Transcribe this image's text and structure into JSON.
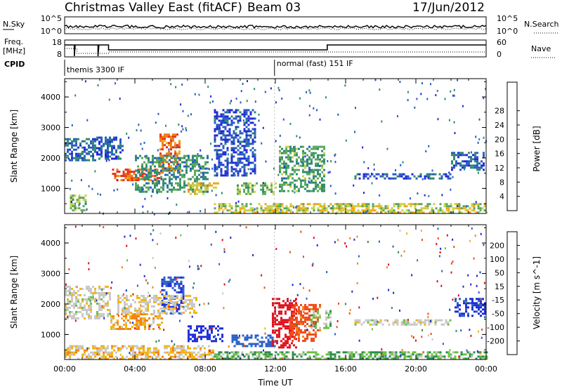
{
  "header": {
    "title": "Christmas Valley East (fitACF)",
    "beam": "Beam 03",
    "date": "17/Jun/2012"
  },
  "strips": {
    "nsky_label": "N.Sky",
    "nsky_ticks": [
      "10^5",
      "10^0"
    ],
    "nsearch_label": "N.Search",
    "nsearch_ticks": [
      "10^5",
      "10^0"
    ],
    "freq_label_line1": "Freq.",
    "freq_label_line2": "[MHz]",
    "freq_ticks": [
      "18",
      "8"
    ],
    "nave_label": "Nave",
    "nave_ticks": [
      "60",
      "0"
    ],
    "cpid_label": "CPID",
    "cpid_modes": [
      {
        "text": "themis 3300 IF",
        "start_hour": 0
      },
      {
        "text": "normal (fast) 151 IF",
        "start_hour": 11.95
      }
    ]
  },
  "chart_data": [
    {
      "type": "heatmap",
      "title": "",
      "xlabel": "",
      "ylabel": "Slant Range [km]",
      "xlim": [
        0,
        24
      ],
      "ylim": [
        180,
        4600
      ],
      "yticks": [
        "1000",
        "2000",
        "3000",
        "4000"
      ],
      "colorbar": {
        "label": "Power [dB]",
        "ticks": [
          "4",
          "8",
          "12",
          "16",
          "20",
          "24",
          "28"
        ],
        "colors": [
          "#1f2bd6",
          "#2a5bc4",
          "#2e8a6e",
          "#5aa85e",
          "#c8d24a",
          "#f0a818",
          "#f07a18",
          "#e83018",
          "#d80a0a"
        ]
      },
      "echo_regions": [
        {
          "x0": 0.0,
          "x1": 1.8,
          "r0": 1900,
          "r1": 2650,
          "val": 6
        },
        {
          "x0": 0.3,
          "x1": 1.2,
          "r0": 250,
          "r1": 800,
          "val": 14
        },
        {
          "x0": 1.8,
          "x1": 3.3,
          "r0": 2000,
          "r1": 2700,
          "val": 5
        },
        {
          "x0": 2.7,
          "x1": 5.4,
          "r0": 1250,
          "r1": 1650,
          "val": 25
        },
        {
          "x0": 5.4,
          "x1": 6.6,
          "r0": 1550,
          "r1": 2800,
          "val": 24
        },
        {
          "x0": 4.0,
          "x1": 8.2,
          "r0": 900,
          "r1": 2100,
          "val": 10
        },
        {
          "x0": 7.0,
          "x1": 8.8,
          "r0": 800,
          "r1": 1200,
          "val": 18
        },
        {
          "x0": 8.5,
          "x1": 10.8,
          "r0": 1400,
          "r1": 3600,
          "val": 4
        },
        {
          "x0": 9.8,
          "x1": 12.0,
          "r0": 800,
          "r1": 1200,
          "val": 13
        },
        {
          "x0": 12.2,
          "x1": 14.8,
          "r0": 900,
          "r1": 2400,
          "val": 11
        },
        {
          "x0": 16.5,
          "x1": 22.0,
          "r0": 1350,
          "r1": 1500,
          "val": 5
        },
        {
          "x0": 22.0,
          "x1": 23.9,
          "r0": 1600,
          "r1": 2200,
          "val": 6
        },
        {
          "x0": 8.5,
          "x1": 24.0,
          "r0": 180,
          "r1": 520,
          "val": 16
        }
      ]
    },
    {
      "type": "heatmap",
      "title": "",
      "xlabel": "Time UT",
      "ylabel": "Slant Range [km]",
      "xlim": [
        0,
        24
      ],
      "ylim": [
        180,
        4600
      ],
      "xticks": [
        "00:00",
        "04:00",
        "08:00",
        "12:00",
        "16:00",
        "20:00",
        "00:00"
      ],
      "yticks": [
        "1000",
        "2000",
        "3000",
        "4000"
      ],
      "colorbar": {
        "label": "Velocity [m s^-1]",
        "ticks": [
          "200",
          "100",
          "50",
          "15",
          "-15",
          "-50",
          "-100",
          "-200"
        ],
        "colors": [
          "#1a2cd8",
          "#2a60c8",
          "#2e8c4e",
          "#6ac044",
          "#c8c8c8",
          "#f0b418",
          "#f08418",
          "#f04a18",
          "#e0101c"
        ]
      },
      "echo_regions": [
        {
          "x0": 0.0,
          "x1": 2.6,
          "r0": 1500,
          "r1": 2600,
          "val": 0
        },
        {
          "x0": 2.6,
          "x1": 5.5,
          "r0": 1200,
          "r1": 1700,
          "val": -30
        },
        {
          "x0": 5.5,
          "x1": 6.8,
          "r0": 1700,
          "r1": 2900,
          "val": 150
        },
        {
          "x0": 3.0,
          "x1": 7.5,
          "r0": 1700,
          "r1": 2300,
          "val": -10
        },
        {
          "x0": 7.0,
          "x1": 9.0,
          "r0": 800,
          "r1": 1300,
          "val": 180
        },
        {
          "x0": 9.5,
          "x1": 12.0,
          "r0": 600,
          "r1": 1000,
          "val": 120
        },
        {
          "x0": 11.8,
          "x1": 13.2,
          "r0": 600,
          "r1": 2200,
          "val": -180
        },
        {
          "x0": 12.8,
          "x1": 14.5,
          "r0": 800,
          "r1": 2000,
          "val": -90
        },
        {
          "x0": 14.0,
          "x1": 15.2,
          "r0": 1200,
          "r1": 1800,
          "val": 20
        },
        {
          "x0": 16.5,
          "x1": 22.0,
          "r0": 1350,
          "r1": 1500,
          "val": 0
        },
        {
          "x0": 22.2,
          "x1": 23.9,
          "r0": 1600,
          "r1": 2200,
          "val": 160
        },
        {
          "x0": 0.0,
          "x1": 8.5,
          "r0": 180,
          "r1": 650,
          "val": -20
        },
        {
          "x0": 8.5,
          "x1": 24.0,
          "r0": 180,
          "r1": 450,
          "val": 30
        }
      ]
    }
  ]
}
